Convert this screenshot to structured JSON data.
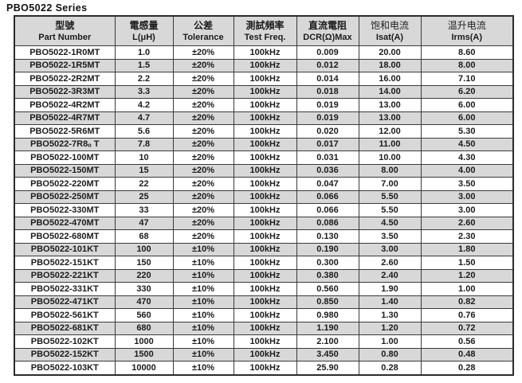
{
  "page": {
    "title": "PBO5022 Series"
  },
  "colors": {
    "stripe_bg": "#d8d8d8",
    "header_bg": "#d8d8d8",
    "border": "#3a3a3a",
    "text": "#1c1c1c",
    "background": "#ffffff"
  },
  "table": {
    "columns": [
      {
        "zh": "型號",
        "en": "Part Number"
      },
      {
        "zh": "電感量",
        "en": "L(μH)"
      },
      {
        "zh": "公差",
        "en": "Tolerance"
      },
      {
        "zh": "測試頻率",
        "en": "Test Freq."
      },
      {
        "zh": "直流電阻",
        "en": "DCR(Ω)Max"
      },
      {
        "zh": "饱和电流",
        "en": "Isat(A)"
      },
      {
        "zh": "温升电流",
        "en": "Irms(A)"
      }
    ],
    "rows": [
      [
        "PBO5022-1R0MT",
        "1.0",
        "±20%",
        "100kHz",
        "0.009",
        "20.00",
        "8.60"
      ],
      [
        "PBO5022-1R5MT",
        "1.5",
        "±20%",
        "100kHz",
        "0.012",
        "18.00",
        "8.00"
      ],
      [
        "PBO5022-2R2MT",
        "2.2",
        "±20%",
        "100kHz",
        "0.014",
        "16.00",
        "7.10"
      ],
      [
        "PBO5022-3R3MT",
        "3.3",
        "±20%",
        "100kHz",
        "0.018",
        "14.00",
        "6.20"
      ],
      [
        "PBO5022-4R2MT",
        "4.2",
        "±20%",
        "100kHz",
        "0.019",
        "13.00",
        "6.00"
      ],
      [
        "PBO5022-4R7MT",
        "4.7",
        "±20%",
        "100kHz",
        "0.019",
        "13.00",
        "6.00"
      ],
      [
        "PBO5022-5R6MT",
        "5.6",
        "±20%",
        "100kHz",
        "0.020",
        "12.00",
        "5.30"
      ],
      [
        "PBO5022-7R8ₒ T",
        "7.8",
        "±20%",
        "100kHz",
        "0.017",
        "11.00",
        "4.50"
      ],
      [
        "PBO5022-100MT",
        "10",
        "±20%",
        "100kHz",
        "0.031",
        "10.00",
        "4.30"
      ],
      [
        "PBO5022-150MT",
        "15",
        "±20%",
        "100kHz",
        "0.036",
        "8.00",
        "4.00"
      ],
      [
        "PBO5022-220MT",
        "22",
        "±20%",
        "100kHz",
        "0.047",
        "7.00",
        "3.50"
      ],
      [
        "PBO5022-250MT",
        "25",
        "±20%",
        "100kHz",
        "0.066",
        "5.50",
        "3.00"
      ],
      [
        "PBO5022-330MT",
        "33",
        "±20%",
        "100kHz",
        "0.066",
        "5.50",
        "3.00"
      ],
      [
        "PBO5022-470MT",
        "47",
        "±20%",
        "100kHz",
        "0.086",
        "4.50",
        "2.60"
      ],
      [
        "PBO5022-680MT",
        "68",
        "±20%",
        "100kHz",
        "0.130",
        "3.50",
        "2.30"
      ],
      [
        "PBO5022-101KT",
        "100",
        "±10%",
        "100kHz",
        "0.190",
        "3.00",
        "1.80"
      ],
      [
        "PBO5022-151KT",
        "150",
        "±10%",
        "100kHz",
        "0.300",
        "2.60",
        "1.50"
      ],
      [
        "PBO5022-221KT",
        "220",
        "±10%",
        "100kHz",
        "0.380",
        "2.40",
        "1.20"
      ],
      [
        "PBO5022-331KT",
        "330",
        "±10%",
        "100kHz",
        "0.560",
        "1.90",
        "1.00"
      ],
      [
        "PBO5022-471KT",
        "470",
        "±10%",
        "100kHz",
        "0.850",
        "1.40",
        "0.82"
      ],
      [
        "PBO5022-561KT",
        "560",
        "±10%",
        "100kHz",
        "0.980",
        "1.30",
        "0.76"
      ],
      [
        "PBO5022-681KT",
        "680",
        "±10%",
        "100kHz",
        "1.190",
        "1.20",
        "0.72"
      ],
      [
        "PBO5022-102KT",
        "1000",
        "±10%",
        "100kHz",
        "2.100",
        "1.00",
        "0.56"
      ],
      [
        "PBO5022-152KT",
        "1500",
        "±10%",
        "100kHz",
        "3.450",
        "0.80",
        "0.48"
      ],
      [
        "PBO5022-103KT",
        "10000",
        "±10%",
        "100kHz",
        "25.90",
        "0.28",
        "0.28"
      ]
    ]
  }
}
